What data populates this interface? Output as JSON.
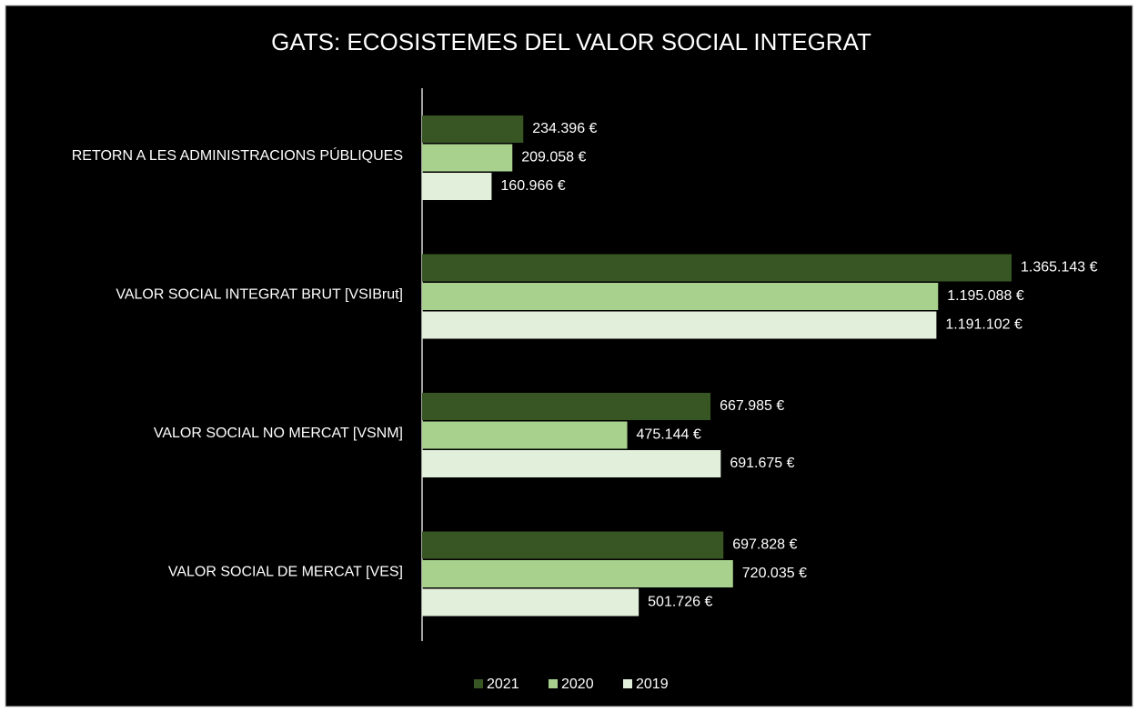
{
  "chart_data": {
    "type": "barh",
    "title": "GATS: ECOSISTEMES DEL VALOR SOCIAL INTEGRAT",
    "categories": [
      "RETORN A LES ADMINISTRACIONS PÚBLIQUES",
      "VALOR SOCIAL INTEGRAT BRUT [VSIBrut]",
      "VALOR SOCIAL NO MERCAT [VSNM]",
      "VALOR SOCIAL DE MERCAT [VES]"
    ],
    "series": [
      {
        "name": "2021",
        "color": "#375623",
        "values": [
          234396,
          1365143,
          667985,
          697828
        ],
        "value_labels": [
          "234.396 €",
          "1.365.143 €",
          "667.985 €",
          "697.828 €"
        ]
      },
      {
        "name": "2020",
        "color": "#a9d18e",
        "values": [
          209058,
          1195088,
          475144,
          720035
        ],
        "value_labels": [
          "209.058 €",
          "1.195.088 €",
          "475.144 €",
          "720.035 €"
        ]
      },
      {
        "name": "2019",
        "color": "#e2efda",
        "values": [
          160966,
          1191102,
          691675,
          501726
        ],
        "value_labels": [
          "160.966 €",
          "1.191.102 €",
          "691.675 €",
          "501.726 €"
        ]
      }
    ],
    "legend": "bottom"
  }
}
